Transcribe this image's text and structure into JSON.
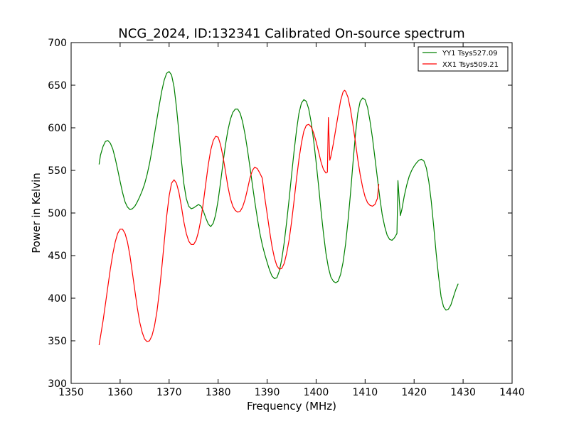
{
  "chart_data": {
    "type": "line",
    "title": "NCG_2024, ID:132341 Calibrated On-source spectrum",
    "xlabel": "Frequency (MHz)",
    "ylabel": "Power in Kelvin",
    "xlim": [
      1350,
      1440
    ],
    "ylim": [
      300,
      700
    ],
    "x_ticks": [
      1350,
      1360,
      1370,
      1380,
      1390,
      1400,
      1410,
      1420,
      1430,
      1440
    ],
    "y_ticks": [
      300,
      350,
      400,
      450,
      500,
      550,
      600,
      650,
      700
    ],
    "grid": false,
    "legend_position": "top-right",
    "series": [
      {
        "name": "YY1 Tsys527.09",
        "color": "#008000",
        "points": [
          [
            1355.7,
            557
          ],
          [
            1356.0,
            568
          ],
          [
            1356.5,
            578
          ],
          [
            1357.0,
            584
          ],
          [
            1357.5,
            585
          ],
          [
            1358.0,
            582
          ],
          [
            1358.5,
            575
          ],
          [
            1359.0,
            564
          ],
          [
            1359.5,
            551
          ],
          [
            1360.0,
            537
          ],
          [
            1360.5,
            524
          ],
          [
            1361.0,
            513
          ],
          [
            1361.5,
            507
          ],
          [
            1362.0,
            504
          ],
          [
            1362.5,
            505
          ],
          [
            1363.0,
            508
          ],
          [
            1363.5,
            513
          ],
          [
            1364.0,
            519
          ],
          [
            1364.5,
            526
          ],
          [
            1365.0,
            534
          ],
          [
            1365.5,
            545
          ],
          [
            1366.0,
            558
          ],
          [
            1366.5,
            574
          ],
          [
            1367.0,
            592
          ],
          [
            1367.5,
            610
          ],
          [
            1368.0,
            627
          ],
          [
            1368.5,
            643
          ],
          [
            1369.0,
            656
          ],
          [
            1369.5,
            664
          ],
          [
            1370.0,
            666
          ],
          [
            1370.5,
            662
          ],
          [
            1371.0,
            648
          ],
          [
            1371.5,
            624
          ],
          [
            1372.0,
            594
          ],
          [
            1372.5,
            562
          ],
          [
            1373.0,
            535
          ],
          [
            1373.5,
            517
          ],
          [
            1374.0,
            508
          ],
          [
            1374.5,
            505
          ],
          [
            1375.0,
            506
          ],
          [
            1375.5,
            508
          ],
          [
            1376.0,
            510
          ],
          [
            1376.5,
            508
          ],
          [
            1377.0,
            502
          ],
          [
            1377.5,
            494
          ],
          [
            1378.0,
            487
          ],
          [
            1378.5,
            484
          ],
          [
            1379.0,
            488
          ],
          [
            1379.5,
            498
          ],
          [
            1380.0,
            515
          ],
          [
            1380.5,
            536
          ],
          [
            1381.0,
            559
          ],
          [
            1381.5,
            580
          ],
          [
            1382.0,
            597
          ],
          [
            1382.5,
            610
          ],
          [
            1383.0,
            618
          ],
          [
            1383.5,
            622
          ],
          [
            1384.0,
            622
          ],
          [
            1384.5,
            617
          ],
          [
            1385.0,
            607
          ],
          [
            1385.5,
            592
          ],
          [
            1386.0,
            574
          ],
          [
            1386.5,
            554
          ],
          [
            1387.0,
            533
          ],
          [
            1387.5,
            513
          ],
          [
            1388.0,
            494
          ],
          [
            1388.5,
            477
          ],
          [
            1389.0,
            463
          ],
          [
            1389.5,
            452
          ],
          [
            1390.0,
            442
          ],
          [
            1390.5,
            433
          ],
          [
            1391.0,
            426
          ],
          [
            1391.5,
            423
          ],
          [
            1392.0,
            424
          ],
          [
            1392.5,
            432
          ],
          [
            1393.0,
            446
          ],
          [
            1393.5,
            466
          ],
          [
            1394.0,
            490
          ],
          [
            1394.5,
            517
          ],
          [
            1395.0,
            545
          ],
          [
            1395.5,
            572
          ],
          [
            1396.0,
            597
          ],
          [
            1396.5,
            617
          ],
          [
            1397.0,
            629
          ],
          [
            1397.5,
            633
          ],
          [
            1398.0,
            631
          ],
          [
            1398.5,
            622
          ],
          [
            1399.0,
            606
          ],
          [
            1399.5,
            585
          ],
          [
            1400.0,
            560
          ],
          [
            1400.5,
            532
          ],
          [
            1401.0,
            503
          ],
          [
            1401.5,
            476
          ],
          [
            1402.0,
            453
          ],
          [
            1402.5,
            436
          ],
          [
            1403.0,
            425
          ],
          [
            1403.5,
            420
          ],
          [
            1404.0,
            418
          ],
          [
            1404.5,
            420
          ],
          [
            1405.0,
            428
          ],
          [
            1405.5,
            442
          ],
          [
            1406.0,
            463
          ],
          [
            1406.5,
            490
          ],
          [
            1407.0,
            522
          ],
          [
            1407.5,
            557
          ],
          [
            1408.0,
            591
          ],
          [
            1408.5,
            617
          ],
          [
            1409.0,
            631
          ],
          [
            1409.5,
            635
          ],
          [
            1410.0,
            633
          ],
          [
            1410.5,
            624
          ],
          [
            1411.0,
            608
          ],
          [
            1411.5,
            588
          ],
          [
            1412.0,
            565
          ],
          [
            1412.5,
            541
          ],
          [
            1413.0,
            518
          ],
          [
            1413.5,
            498
          ],
          [
            1414.0,
            484
          ],
          [
            1414.5,
            474
          ],
          [
            1415.0,
            469
          ],
          [
            1415.5,
            468
          ],
          [
            1416.0,
            471
          ],
          [
            1416.5,
            476
          ],
          [
            1416.7,
            538
          ],
          [
            1417.0,
            512
          ],
          [
            1417.2,
            497
          ],
          [
            1417.5,
            504
          ],
          [
            1418.0,
            520
          ],
          [
            1418.5,
            533
          ],
          [
            1419.0,
            543
          ],
          [
            1419.5,
            550
          ],
          [
            1420.0,
            555
          ],
          [
            1420.5,
            559
          ],
          [
            1421.0,
            562
          ],
          [
            1421.5,
            563
          ],
          [
            1422.0,
            561
          ],
          [
            1422.5,
            553
          ],
          [
            1423.0,
            537
          ],
          [
            1423.5,
            514
          ],
          [
            1424.0,
            484
          ],
          [
            1424.5,
            453
          ],
          [
            1425.0,
            425
          ],
          [
            1425.5,
            402
          ],
          [
            1426.0,
            390
          ],
          [
            1426.5,
            386
          ],
          [
            1427.0,
            387
          ],
          [
            1427.5,
            392
          ],
          [
            1428.0,
            401
          ],
          [
            1428.5,
            410
          ],
          [
            1429.0,
            417
          ]
        ]
      },
      {
        "name": "XX1 Tsys509.21",
        "color": "#ff0000",
        "points": [
          [
            1355.7,
            345
          ],
          [
            1356.0,
            355
          ],
          [
            1356.5,
            373
          ],
          [
            1357.0,
            393
          ],
          [
            1357.5,
            414
          ],
          [
            1358.0,
            434
          ],
          [
            1358.5,
            452
          ],
          [
            1359.0,
            466
          ],
          [
            1359.5,
            476
          ],
          [
            1360.0,
            481
          ],
          [
            1360.5,
            481
          ],
          [
            1361.0,
            476
          ],
          [
            1361.5,
            466
          ],
          [
            1362.0,
            450
          ],
          [
            1362.5,
            430
          ],
          [
            1363.0,
            409
          ],
          [
            1363.5,
            389
          ],
          [
            1364.0,
            372
          ],
          [
            1364.5,
            360
          ],
          [
            1365.0,
            352
          ],
          [
            1365.5,
            349
          ],
          [
            1366.0,
            350
          ],
          [
            1366.5,
            356
          ],
          [
            1367.0,
            367
          ],
          [
            1367.5,
            384
          ],
          [
            1368.0,
            407
          ],
          [
            1368.5,
            435
          ],
          [
            1369.0,
            466
          ],
          [
            1369.5,
            496
          ],
          [
            1370.0,
            520
          ],
          [
            1370.5,
            535
          ],
          [
            1371.0,
            539
          ],
          [
            1371.5,
            535
          ],
          [
            1372.0,
            524
          ],
          [
            1372.5,
            508
          ],
          [
            1373.0,
            490
          ],
          [
            1373.5,
            476
          ],
          [
            1374.0,
            467
          ],
          [
            1374.5,
            463
          ],
          [
            1375.0,
            463
          ],
          [
            1375.5,
            468
          ],
          [
            1376.0,
            478
          ],
          [
            1376.5,
            493
          ],
          [
            1377.0,
            513
          ],
          [
            1377.5,
            535
          ],
          [
            1378.0,
            557
          ],
          [
            1378.5,
            574
          ],
          [
            1379.0,
            585
          ],
          [
            1379.5,
            590
          ],
          [
            1380.0,
            589
          ],
          [
            1380.5,
            580
          ],
          [
            1381.0,
            566
          ],
          [
            1381.5,
            549
          ],
          [
            1382.0,
            531
          ],
          [
            1382.5,
            517
          ],
          [
            1383.0,
            508
          ],
          [
            1383.5,
            503
          ],
          [
            1384.0,
            501
          ],
          [
            1384.5,
            502
          ],
          [
            1385.0,
            507
          ],
          [
            1385.5,
            516
          ],
          [
            1386.0,
            528
          ],
          [
            1386.5,
            541
          ],
          [
            1387.0,
            550
          ],
          [
            1387.5,
            554
          ],
          [
            1388.0,
            552
          ],
          [
            1388.5,
            547
          ],
          [
            1389.0,
            541
          ],
          [
            1389.5,
            519
          ],
          [
            1390.0,
            499
          ],
          [
            1390.5,
            479
          ],
          [
            1391.0,
            461
          ],
          [
            1391.5,
            447
          ],
          [
            1392.0,
            438
          ],
          [
            1392.5,
            434
          ],
          [
            1393.0,
            435
          ],
          [
            1393.5,
            441
          ],
          [
            1394.0,
            453
          ],
          [
            1394.5,
            469
          ],
          [
            1395.0,
            490
          ],
          [
            1395.5,
            514
          ],
          [
            1396.0,
            540
          ],
          [
            1396.5,
            563
          ],
          [
            1397.0,
            582
          ],
          [
            1397.5,
            596
          ],
          [
            1398.0,
            603
          ],
          [
            1398.5,
            604
          ],
          [
            1399.0,
            601
          ],
          [
            1399.5,
            594
          ],
          [
            1400.0,
            584
          ],
          [
            1400.5,
            572
          ],
          [
            1401.0,
            560
          ],
          [
            1401.5,
            551
          ],
          [
            1402.0,
            547
          ],
          [
            1402.3,
            548
          ],
          [
            1402.5,
            612
          ],
          [
            1402.8,
            562
          ],
          [
            1403.0,
            566
          ],
          [
            1403.5,
            581
          ],
          [
            1404.0,
            598
          ],
          [
            1404.5,
            615
          ],
          [
            1405.0,
            632
          ],
          [
            1405.5,
            642
          ],
          [
            1405.8,
            644
          ],
          [
            1406.0,
            643
          ],
          [
            1406.5,
            636
          ],
          [
            1407.0,
            622
          ],
          [
            1407.5,
            604
          ],
          [
            1408.0,
            584
          ],
          [
            1408.5,
            563
          ],
          [
            1409.0,
            545
          ],
          [
            1409.5,
            530
          ],
          [
            1410.0,
            519
          ],
          [
            1410.5,
            512
          ],
          [
            1411.0,
            509
          ],
          [
            1411.5,
            508
          ],
          [
            1412.0,
            510
          ],
          [
            1412.5,
            517
          ],
          [
            1412.8,
            534
          ]
        ]
      }
    ]
  }
}
